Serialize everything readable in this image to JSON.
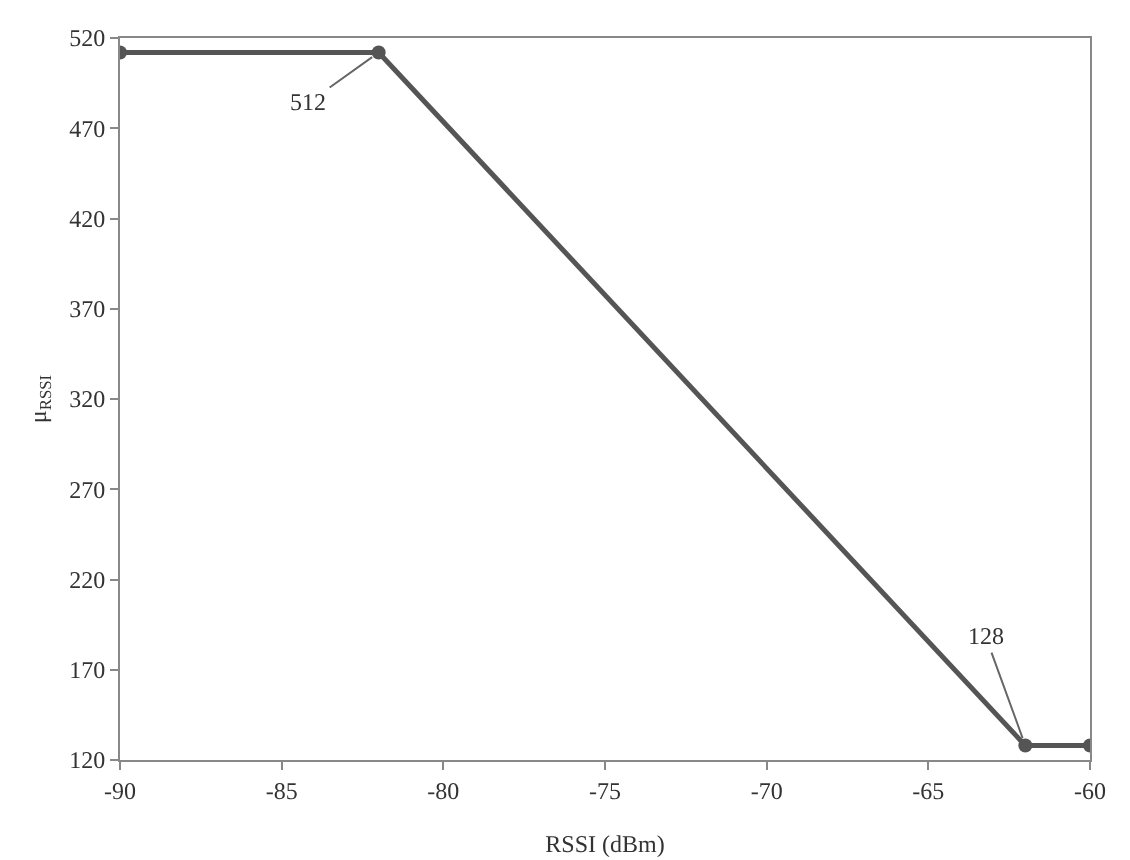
{
  "chart_data": {
    "type": "line",
    "xlabel": "RSSI (dBm)",
    "ylabel": "μ$_{RSSI}$",
    "x": [
      -90,
      -82,
      -62,
      -60
    ],
    "series": [
      {
        "color": "#555555",
        "values": [
          512,
          512,
          128,
          128
        ]
      }
    ],
    "xlim": [
      -90,
      -60
    ],
    "xticks": [
      -90,
      -85,
      -80,
      -75,
      -70,
      -65,
      -60
    ],
    "ylim": [
      120,
      520
    ],
    "yticks": [
      120,
      170,
      220,
      270,
      320,
      370,
      420,
      470,
      520
    ],
    "grid": false,
    "marker": "circle",
    "line_style": "solid",
    "annotations": [
      {
        "text": "512",
        "x": -82,
        "y": 512
      },
      {
        "text": "128",
        "x": -62,
        "y": 128
      }
    ]
  }
}
